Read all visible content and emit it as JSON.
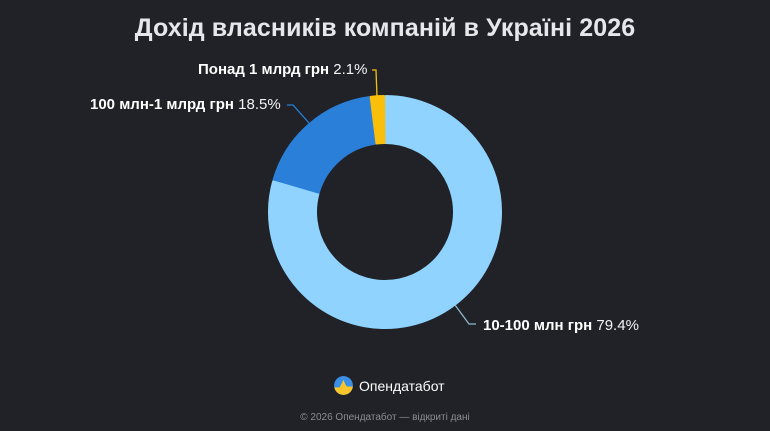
{
  "title": "Дохід власників компаній в Україні 2026",
  "chart_data": {
    "type": "pie",
    "variant": "donut",
    "title": "Дохід власників компаній в Україні 2026",
    "categories": [
      "10-100 млн грн",
      "100 млн-1 млрд грн",
      "Понад 1 млрд грн"
    ],
    "values": [
      79.4,
      18.5,
      2.1
    ],
    "unit": "%",
    "colors": [
      "#8fd3fe",
      "#2a7fd9",
      "#f9bf0a"
    ],
    "start_angle": "top",
    "direction": "clockwise",
    "legend": "none (direct labels with leader lines)"
  },
  "labels": {
    "yellow": {
      "category": "Понад 1 млрд грн",
      "percent": "2.1%"
    },
    "dark_blue": {
      "category": "100 млн-1 млрд грн",
      "percent": "18.5%"
    },
    "light_blue": {
      "category": "10-100 млн грн",
      "percent": "79.4%"
    }
  },
  "colors": {
    "background": "#202227",
    "leader_yellow": "#f9bf0a",
    "leader_blue": "#2a7fd9",
    "leader_light": "#8fb8cc"
  },
  "brand": {
    "name": "Опендатабот",
    "icon": "opendatabot-logo-icon"
  },
  "footer": "© 2026 Опендатабот — відкриті дані"
}
